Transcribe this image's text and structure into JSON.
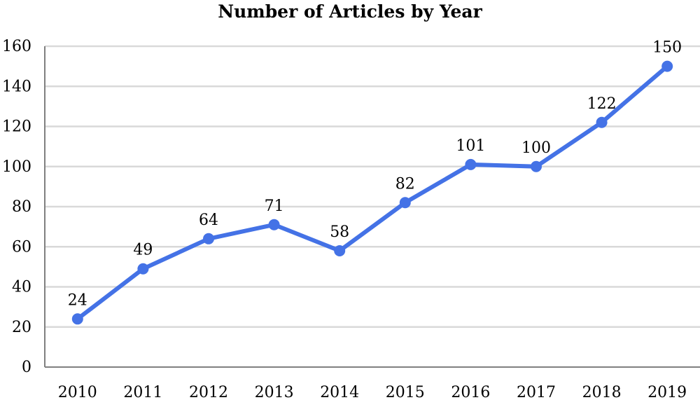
{
  "chart_data": {
    "type": "line",
    "title": "Number of Articles by Year",
    "xlabel": "",
    "ylabel": "",
    "categories": [
      "2010",
      "2011",
      "2012",
      "2013",
      "2014",
      "2015",
      "2016",
      "2017",
      "2018",
      "2019"
    ],
    "series": [
      {
        "values": [
          24,
          49,
          64,
          71,
          58,
          82,
          101,
          100,
          122,
          150
        ]
      }
    ],
    "data_labels": [
      "24",
      "49",
      "64",
      "71",
      "58",
      "82",
      "101",
      "100",
      "122",
      "150"
    ],
    "yticks": [
      "0",
      "20",
      "40",
      "60",
      "80",
      "100",
      "120",
      "140",
      "160"
    ],
    "ylim": [
      0,
      160
    ],
    "grid": true,
    "legend": "none",
    "colors": {
      "line": "#4472e6",
      "grid": "#d9d9d9",
      "axis": "#808080"
    }
  }
}
